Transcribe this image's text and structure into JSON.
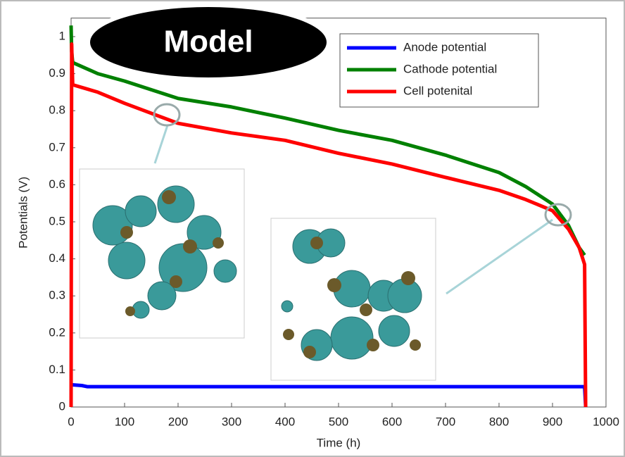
{
  "chart_data": {
    "type": "line",
    "badge": "Model",
    "xlabel": "Time (h)",
    "ylabel": "Potentials (V)",
    "xlim": [
      0,
      1000
    ],
    "ylim": [
      0,
      1.05
    ],
    "xticks": [
      0,
      100,
      200,
      300,
      400,
      500,
      600,
      700,
      800,
      900,
      1000
    ],
    "yticks": [
      0,
      0.1,
      0.2,
      0.3,
      0.4,
      0.5,
      0.6,
      0.7,
      0.8,
      0.9,
      1
    ],
    "legend": "upper right",
    "series": [
      {
        "name": "Anode potential",
        "color": "#0000ff",
        "x": [
          0,
          20,
          30,
          100,
          300,
          500,
          700,
          900,
          960,
          962
        ],
        "values": [
          0.06,
          0.058,
          0.055,
          0.055,
          0.055,
          0.055,
          0.055,
          0.055,
          0.055,
          0
        ]
      },
      {
        "name": "Cathode potential",
        "color": "#008000",
        "x": [
          0,
          1,
          3,
          50,
          100,
          200,
          300,
          400,
          500,
          600,
          700,
          800,
          850,
          900,
          930,
          950,
          960
        ],
        "values": [
          1.03,
          0.96,
          0.93,
          0.9,
          0.88,
          0.833,
          0.81,
          0.78,
          0.747,
          0.72,
          0.68,
          0.633,
          0.595,
          0.548,
          0.49,
          0.43,
          0.41
        ]
      },
      {
        "name": "Cell potenital",
        "color": "#ff0000",
        "x": [
          0,
          1,
          3,
          50,
          100,
          200,
          300,
          400,
          500,
          600,
          700,
          800,
          850,
          900,
          930,
          950,
          960,
          962
        ],
        "values": [
          0,
          0.98,
          0.87,
          0.85,
          0.82,
          0.766,
          0.74,
          0.72,
          0.685,
          0.656,
          0.62,
          0.585,
          0.56,
          0.53,
          0.48,
          0.43,
          0.385,
          0
        ]
      }
    ]
  }
}
